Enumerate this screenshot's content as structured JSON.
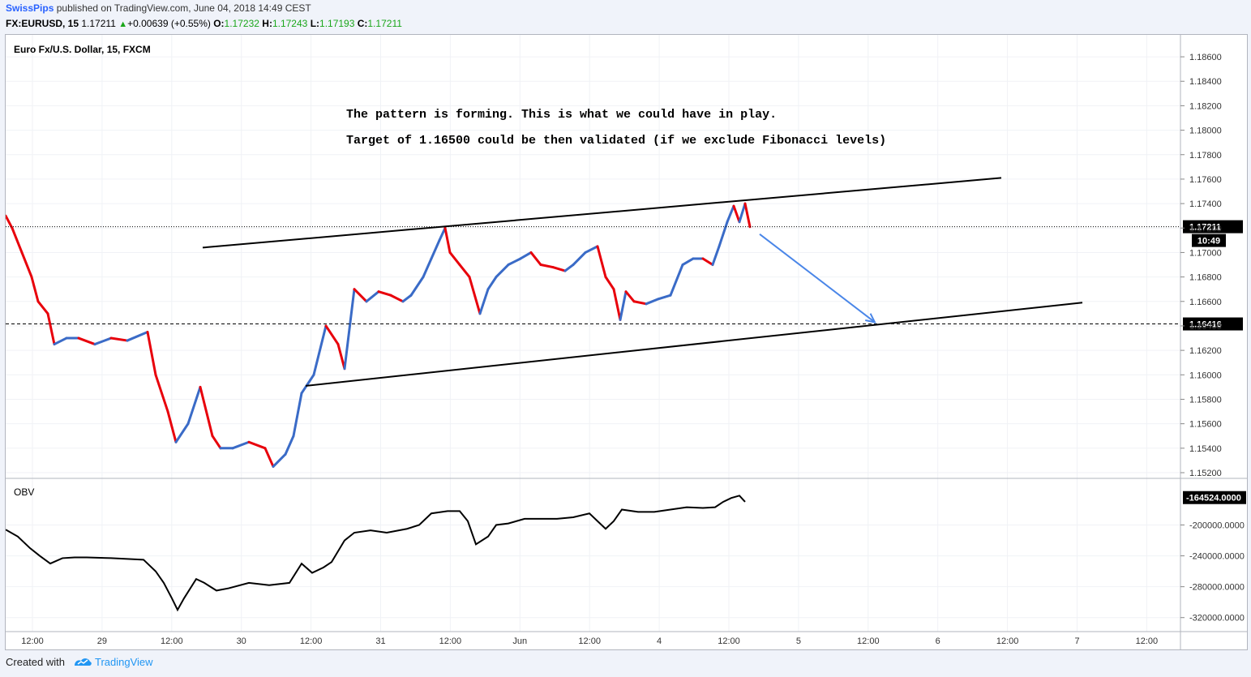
{
  "header": {
    "user": "SwissPips",
    "published": "published on TradingView.com, June 04, 2018 14:49 CEST",
    "symbol": "FX:EURUSD, 15",
    "last": "1.17211",
    "change": "+0.00639 (+0.55%)",
    "o_label": "O:",
    "o": "1.17232",
    "h_label": "H:",
    "h": "1.17243",
    "l_label": "L:",
    "l": "1.17193",
    "c_label": "C:",
    "c": "1.17211"
  },
  "footer": {
    "created": "Created with",
    "brand": "TradingView"
  },
  "colors": {
    "up": "#3a6bc7",
    "down": "#e8000b",
    "arrow": "#4a86e8",
    "change": "#1aa61a",
    "brand": "#2196f3"
  },
  "chart_data": {
    "type": "line",
    "title": "Euro Fx/U.S. Dollar, 15, FXCM",
    "annotations": [
      "The pattern is forming. This is what we could have in play.",
      "Target of 1.16500 could be then validated (if we exclude Fibonacci levels)"
    ],
    "x_ticks": [
      "12:00",
      "29",
      "12:00",
      "30",
      "12:00",
      "31",
      "12:00",
      "Jun",
      "12:00",
      "4",
      "12:00",
      "5",
      "12:00",
      "6",
      "12:00",
      "7",
      "12:00"
    ],
    "y_ticks": [
      "1.18600",
      "1.18400",
      "1.18200",
      "1.18000",
      "1.17800",
      "1.17600",
      "1.17400",
      "1.17200",
      "1.17000",
      "1.16800",
      "1.16600",
      "1.16400",
      "1.16200",
      "1.16000",
      "1.15800",
      "1.15600",
      "1.15400",
      "1.15200"
    ],
    "ylim": [
      1.1518,
      1.1868
    ],
    "current_price": "1.17211",
    "countdown": "10:49",
    "support_level": "1.16416",
    "price_series": {
      "name": "EURUSD",
      "x": [
        0,
        8,
        20,
        32,
        40,
        52,
        60,
        75,
        90,
        110,
        130,
        150,
        175,
        185,
        200,
        210,
        225,
        240,
        255,
        265,
        280,
        300,
        320,
        330,
        345,
        355,
        365,
        380,
        395,
        410,
        418,
        430,
        445,
        460,
        475,
        490,
        500,
        515,
        525,
        535,
        542,
        548,
        560,
        572,
        585,
        595,
        605,
        620,
        635,
        648,
        660,
        675,
        690,
        700,
        715,
        730,
        740,
        750,
        758,
        765,
        775,
        790,
        805,
        820,
        835,
        848,
        860,
        872,
        880,
        890,
        898,
        905,
        912,
        918
      ],
      "y": [
        1.173,
        1.172,
        1.17,
        1.168,
        1.166,
        1.165,
        1.1625,
        1.163,
        1.163,
        1.1625,
        1.163,
        1.1628,
        1.1635,
        1.16,
        1.157,
        1.1545,
        1.156,
        1.159,
        1.155,
        1.154,
        1.154,
        1.1545,
        1.154,
        1.1525,
        1.1535,
        1.155,
        1.1585,
        1.16,
        1.164,
        1.1625,
        1.1605,
        1.167,
        1.166,
        1.1668,
        1.1665,
        1.166,
        1.1665,
        1.168,
        1.1695,
        1.171,
        1.172,
        1.17,
        1.169,
        1.168,
        1.165,
        1.167,
        1.168,
        1.169,
        1.1695,
        1.17,
        1.169,
        1.1688,
        1.1685,
        1.169,
        1.17,
        1.1705,
        1.168,
        1.167,
        1.1645,
        1.1668,
        1.166,
        1.1658,
        1.1662,
        1.1665,
        1.169,
        1.1695,
        1.1695,
        1.169,
        1.1705,
        1.1725,
        1.1738,
        1.1725,
        1.174,
        1.1721
      ]
    },
    "trendlines": [
      {
        "x": [
          243,
          1228
        ],
        "y": [
          1.1704,
          1.1761
        ]
      },
      {
        "x": [
          370,
          1328
        ],
        "y": [
          1.1591,
          1.1659
        ]
      }
    ],
    "arrow": {
      "x": [
        930,
        1072
      ],
      "y": [
        1.1715,
        1.1643
      ]
    },
    "obv": {
      "label": "OBV",
      "current": "-164524.0000",
      "y_ticks": [
        "-200000.0000",
        "-240000.0000",
        "-280000.0000",
        "-320000.0000"
      ],
      "ylim": [
        -335000,
        -148000
      ],
      "x": [
        0,
        15,
        30,
        42,
        55,
        70,
        85,
        100,
        130,
        150,
        170,
        185,
        195,
        205,
        212,
        220,
        235,
        245,
        260,
        275,
        300,
        325,
        350,
        365,
        378,
        392,
        402,
        418,
        430,
        450,
        470,
        495,
        510,
        525,
        545,
        560,
        570,
        580,
        595,
        605,
        620,
        640,
        660,
        680,
        700,
        720,
        730,
        740,
        750,
        760,
        780,
        800,
        820,
        840,
        860,
        875,
        885,
        895,
        905,
        912
      ],
      "y": [
        -206000,
        -215000,
        -230000,
        -240000,
        -250000,
        -243000,
        -242000,
        -242000,
        -243000,
        -244000,
        -245000,
        -260000,
        -275000,
        -295000,
        -310000,
        -295000,
        -270000,
        -275000,
        -285000,
        -282000,
        -275000,
        -278000,
        -275000,
        -250000,
        -262000,
        -255000,
        -248000,
        -220000,
        -210000,
        -207000,
        -210000,
        -205000,
        -200000,
        -185000,
        -182000,
        -182000,
        -195000,
        -225000,
        -215000,
        -200000,
        -198000,
        -192000,
        -192000,
        -192000,
        -190000,
        -185000,
        -195000,
        -205000,
        -195000,
        -180000,
        -183000,
        -183000,
        -180000,
        -177000,
        -178000,
        -177000,
        -170000,
        -165000,
        -162000,
        -170000
      ]
    }
  }
}
